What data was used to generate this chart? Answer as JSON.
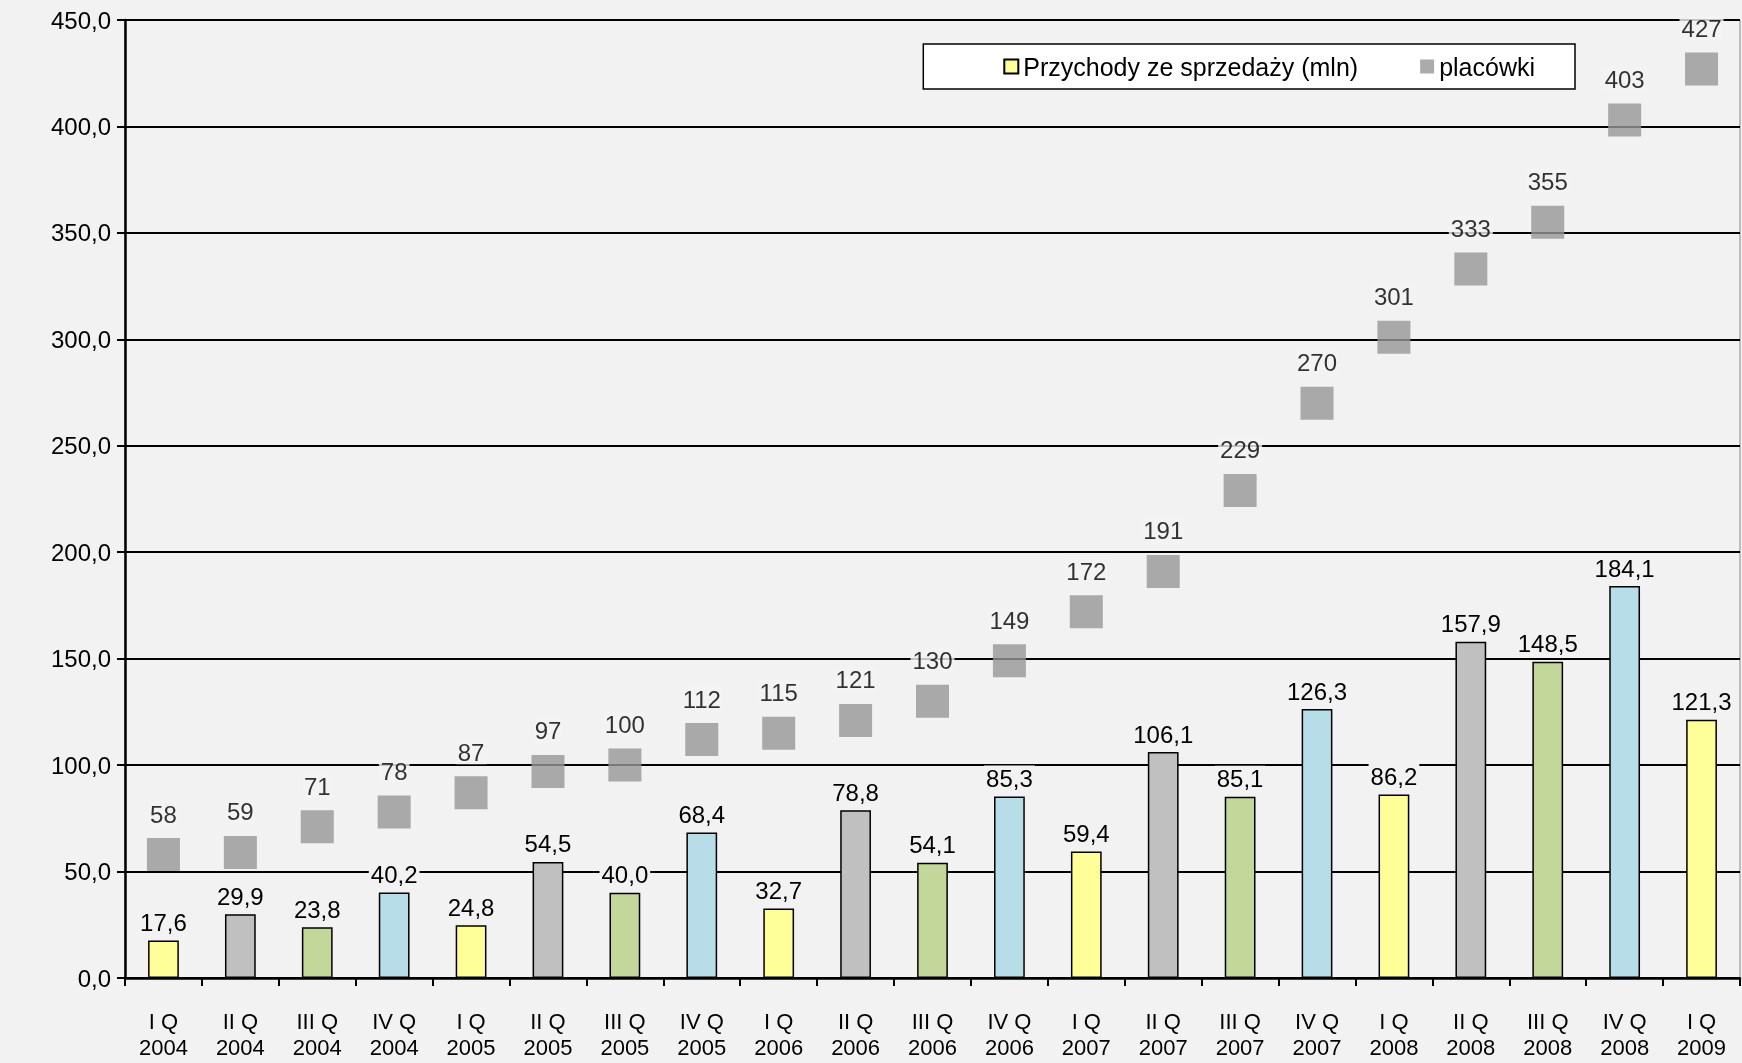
{
  "chart_data": {
    "type": "bar",
    "categories": [
      "I Q\n2004",
      "II Q\n2004",
      "III Q\n2004",
      "IV Q\n2004",
      "I Q\n2005",
      "II Q\n2005",
      "III Q\n2005",
      "IV Q\n2005",
      "I Q\n2006",
      "II Q\n2006",
      "III Q\n2006",
      "IV Q\n2006",
      "I Q\n2007",
      "II Q\n2007",
      "III Q\n2007",
      "IV Q\n2007",
      "I Q\n2008",
      "II Q\n2008",
      "III Q\n2008",
      "IV Q\n2008",
      "I Q\n2009"
    ],
    "series": [
      {
        "name": "Przychody ze sprzedaży (mln)",
        "color": "#ffff99",
        "colors": [
          "#ffff99",
          "#c0c0c0",
          "#c4d79b",
          "#b7dde8",
          "#ffff99",
          "#c0c0c0",
          "#c4d79b",
          "#b7dde8",
          "#ffff99",
          "#c0c0c0",
          "#c4d79b",
          "#b7dde8",
          "#ffff99",
          "#c0c0c0",
          "#c4d79b",
          "#b7dde8",
          "#ffff99",
          "#c0c0c0",
          "#c4d79b",
          "#b7dde8",
          "#ffff99"
        ],
        "values": [
          17.6,
          29.9,
          23.8,
          40.2,
          24.8,
          54.5,
          40.0,
          68.4,
          32.7,
          78.8,
          54.1,
          85.3,
          59.4,
          106.1,
          85.1,
          126.3,
          86.2,
          157.9,
          148.5,
          184.1,
          121.3
        ],
        "value_labels": [
          "17,6",
          "29,9",
          "23,8",
          "40,2",
          "24,8",
          "54,5",
          "40,0",
          "68,4",
          "32,7",
          "78,8",
          "54,1",
          "85,3",
          "59,4",
          "106,1",
          "85,1",
          "126,3",
          "86,2",
          "157,9",
          "148,5",
          "184,1",
          "121,3"
        ]
      },
      {
        "name": "placówki",
        "type": "scatter",
        "color": "#969696",
        "marker": "square",
        "values": [
          58,
          59,
          71,
          78,
          87,
          97,
          100,
          112,
          115,
          121,
          130,
          149,
          172,
          191,
          229,
          270,
          301,
          333,
          355,
          403,
          427
        ],
        "value_labels": [
          "58",
          "59",
          "71",
          "78",
          "87",
          "97",
          "100",
          "112",
          "115",
          "121",
          "130",
          "149",
          "172",
          "191",
          "229",
          "270",
          "301",
          "333",
          "355",
          "403",
          "427"
        ]
      }
    ],
    "ylim": [
      0,
      450
    ],
    "yticks": [
      {
        "value": 0,
        "label": "0,0"
      },
      {
        "value": 50,
        "label": "50,0"
      },
      {
        "value": 100,
        "label": "100,0"
      },
      {
        "value": 150,
        "label": "150,0"
      },
      {
        "value": 200,
        "label": "200,0"
      },
      {
        "value": 250,
        "label": "250,0"
      },
      {
        "value": 300,
        "label": "300,0"
      },
      {
        "value": 350,
        "label": "350,0"
      },
      {
        "value": 400,
        "label": "400,0"
      },
      {
        "value": 450,
        "label": "450,0"
      }
    ],
    "grid": "y",
    "legend": "top right"
  }
}
